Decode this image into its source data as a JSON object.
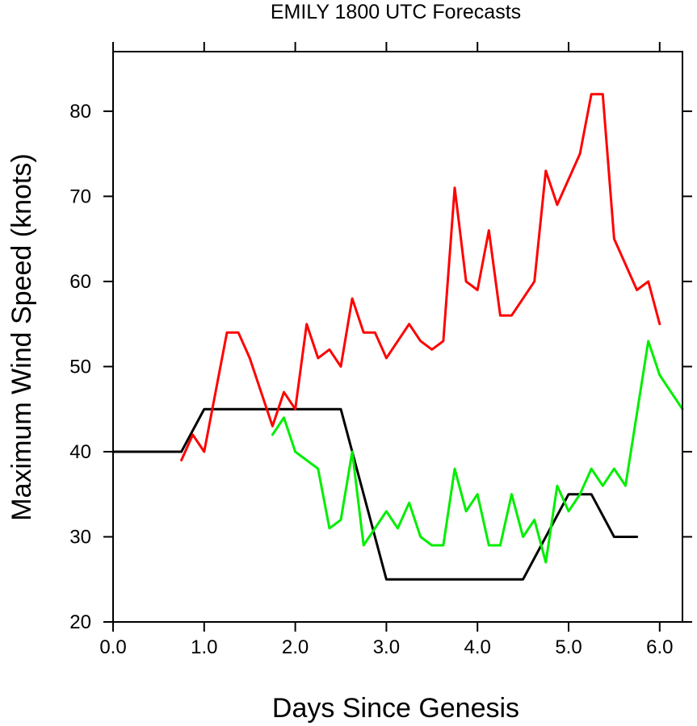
{
  "chart_data": {
    "type": "line",
    "title": "EMILY 1800 UTC Forecasts",
    "xlabel": "Days Since Genesis",
    "ylabel": "Maximum Wind Speed (knots)",
    "xlim": [
      0,
      6.25
    ],
    "ylim": [
      20,
      87
    ],
    "x_ticks": [
      0,
      1,
      2,
      3,
      4,
      5,
      6
    ],
    "x_tick_labels": [
      "0.0",
      "1.0",
      "2.0",
      "3.0",
      "4.0",
      "5.0",
      "6.0"
    ],
    "y_ticks": [
      20,
      30,
      40,
      50,
      60,
      70,
      80
    ],
    "y_tick_labels": [
      "20",
      "30",
      "40",
      "50",
      "60",
      "70",
      "80"
    ],
    "grid": false,
    "series": [
      {
        "color": "#000000",
        "x": [
          0,
          0.75,
          1.0,
          2.5,
          3.0,
          4.5,
          5.0,
          5.25,
          5.5,
          5.75
        ],
        "y": [
          40,
          40,
          45,
          45,
          25,
          25,
          35,
          35,
          30,
          30
        ]
      },
      {
        "color": "#ff0000",
        "x": [
          0.75,
          0.875,
          1.0,
          1.25,
          1.375,
          1.5,
          1.75,
          1.875,
          2.0,
          2.125,
          2.25,
          2.375,
          2.5,
          2.625,
          2.75,
          2.875,
          3.0,
          3.25,
          3.375,
          3.5,
          3.625,
          3.75,
          3.875,
          4.0,
          4.125,
          4.25,
          4.375,
          4.625,
          4.75,
          4.875,
          5.125,
          5.25,
          5.375,
          5.5,
          5.75,
          5.875,
          6.0
        ],
        "y": [
          39,
          42,
          40,
          54,
          54,
          51,
          43,
          47,
          45,
          55,
          51,
          52,
          50,
          58,
          54,
          54,
          51,
          55,
          53,
          52,
          53,
          71,
          60,
          59,
          66,
          56,
          56,
          60,
          73,
          69,
          75,
          82,
          82,
          65,
          59,
          60,
          55
        ]
      },
      {
        "color": "#00ee00",
        "x": [
          1.75,
          1.875,
          2.0,
          2.25,
          2.375,
          2.5,
          2.625,
          2.75,
          3.0,
          3.125,
          3.25,
          3.375,
          3.5,
          3.625,
          3.75,
          3.875,
          4.0,
          4.125,
          4.25,
          4.375,
          4.5,
          4.625,
          4.75,
          4.875,
          5.0,
          5.125,
          5.25,
          5.375,
          5.5,
          5.625,
          5.875,
          6.0,
          6.25
        ],
        "y": [
          42,
          44,
          40,
          38,
          31,
          32,
          40,
          29,
          33,
          31,
          34,
          30,
          29,
          29,
          38,
          33,
          35,
          29,
          29,
          35,
          30,
          32,
          27,
          36,
          33,
          35,
          38,
          36,
          38,
          36,
          53,
          49,
          45
        ]
      }
    ]
  }
}
